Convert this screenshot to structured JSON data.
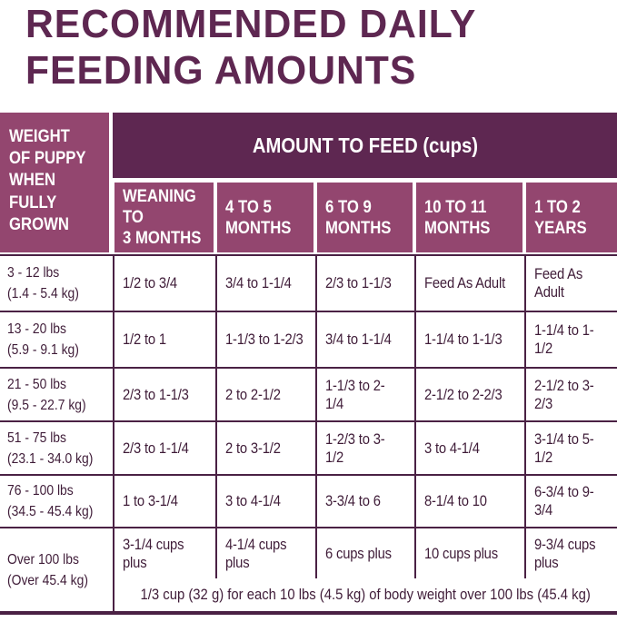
{
  "title": {
    "line1": "RECOMMENDED DAILY",
    "line2": "FEEDING AMOUNTS"
  },
  "colors": {
    "dark_purple": "#5E2751",
    "mauve": "#93466F",
    "text_dark": "#3F1C38",
    "border": "#4A2144",
    "background": "#FFFFFF",
    "header_text": "#FFFFFF"
  },
  "table": {
    "corner_header": "WEIGHT\nOF PUPPY\nWHEN\nFULLY\nGROWN",
    "amount_header": "AMOUNT TO FEED (cups)",
    "columns": [
      "WEANING TO\n3 MONTHS",
      "4 TO 5\nMONTHS",
      "6 TO 9\nMONTHS",
      "10 TO 11\nMONTHS",
      "1 TO 2\nYEARS"
    ],
    "rows": [
      {
        "weight": "3 - 12 lbs\n(1.4 - 5.4 kg)",
        "values": [
          "1/2 to 3/4",
          "3/4 to 1-1/4",
          "2/3 to 1-1/3",
          "Feed As Adult",
          "Feed As Adult"
        ]
      },
      {
        "weight": "13 - 20 lbs\n(5.9 - 9.1 kg)",
        "values": [
          "1/2 to 1",
          "1-1/3 to 1-2/3",
          "3/4 to 1-1/4",
          "1-1/4 to 1-1/3",
          "1-1/4 to 1-1/2"
        ]
      },
      {
        "weight": "21 - 50 lbs\n(9.5 - 22.7 kg)",
        "values": [
          "2/3 to 1-1/3",
          "2 to 2-1/2",
          "1-1/3 to 2-1/4",
          "2-1/2 to 2-2/3",
          "2-1/2 to 3-2/3"
        ]
      },
      {
        "weight": "51 - 75 lbs\n(23.1 - 34.0 kg)",
        "values": [
          "2/3 to 1-1/4",
          "2 to 3-1/2",
          "1-2/3 to 3-1/2",
          "3 to 4-1/4",
          "3-1/4 to 5-1/2"
        ]
      },
      {
        "weight": "76 - 100 lbs\n(34.5 - 45.4 kg)",
        "values": [
          "1 to 3-1/4",
          "3 to 4-1/4",
          "3-3/4 to 6",
          "8-1/4 to 10",
          "6-3/4 to 9-3/4"
        ]
      },
      {
        "weight": "Over 100 lbs\n(Over 45.4 kg)",
        "values": [
          "3-1/4 cups plus",
          "4-1/4 cups plus",
          "6 cups plus",
          "10 cups plus",
          "9-3/4 cups plus"
        ]
      }
    ],
    "footnote": "1/3 cup (32 g) for each 10 lbs (4.5 kg) of body weight over 100 lbs (45.4 kg)"
  }
}
